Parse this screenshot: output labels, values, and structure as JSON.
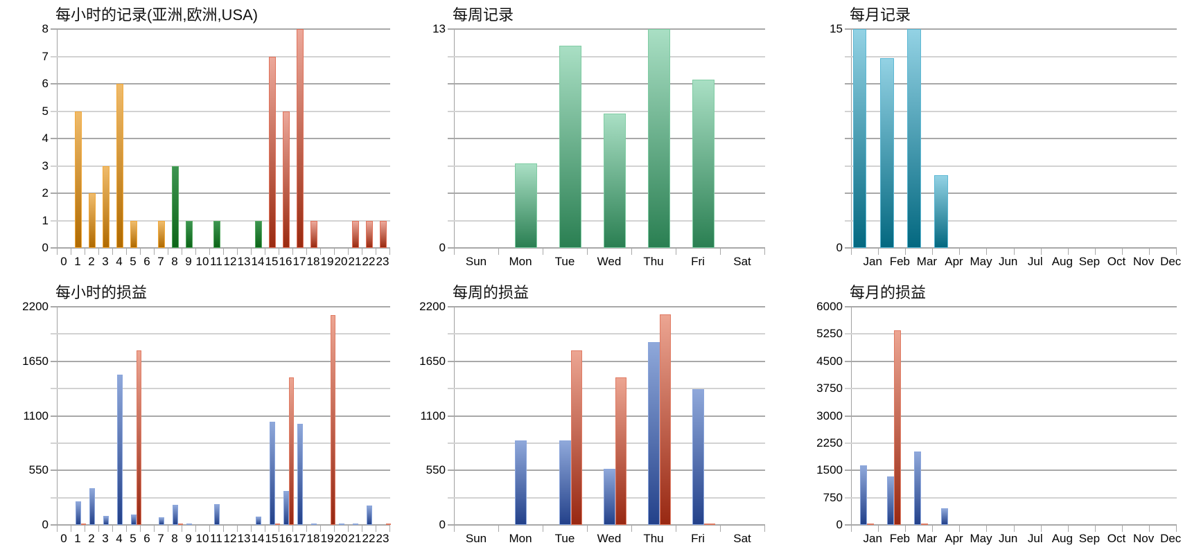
{
  "chart_data": [
    {
      "id": "hourly_records",
      "type": "bar",
      "title": "每小时的记录(亚洲,欧洲,USA)",
      "xlabel": "",
      "ylabel": "",
      "ylim": [
        0,
        8
      ],
      "yticks": [
        "0",
        "1",
        "2",
        "3",
        "4",
        "5",
        "6",
        "7",
        "8"
      ],
      "grid": true,
      "categories": [
        "0",
        "1",
        "2",
        "3",
        "4",
        "5",
        "6",
        "7",
        "8",
        "9",
        "10",
        "11",
        "12",
        "13",
        "14",
        "15",
        "16",
        "17",
        "18",
        "19",
        "20",
        "21",
        "22",
        "23"
      ],
      "series": [
        {
          "name": "亚洲",
          "color": "#d08a1c",
          "values": [
            0,
            5,
            2,
            3,
            6,
            1,
            0,
            1,
            0,
            0,
            0,
            0,
            0,
            0,
            0,
            0,
            0,
            0,
            0,
            0,
            0,
            0,
            0,
            0
          ]
        },
        {
          "name": "欧洲",
          "color": "#1e7a2a",
          "values": [
            0,
            0,
            0,
            0,
            0,
            0,
            0,
            0,
            3,
            1,
            0,
            1,
            0,
            0,
            1,
            0,
            0,
            0,
            0,
            0,
            0,
            0,
            0,
            0
          ]
        },
        {
          "name": "USA",
          "color": "#c2513a",
          "values": [
            0,
            0,
            0,
            0,
            0,
            0,
            0,
            0,
            0,
            0,
            0,
            0,
            0,
            0,
            0,
            7,
            5,
            8,
            1,
            0,
            0,
            1,
            1,
            1
          ]
        }
      ]
    },
    {
      "id": "weekly_records",
      "type": "bar",
      "title": "每周记录",
      "xlabel": "",
      "ylabel": "",
      "ylim": [
        0,
        13
      ],
      "yticks": [
        "0",
        "13"
      ],
      "grid": true,
      "categories": [
        "Sun",
        "Mon",
        "Tue",
        "Wed",
        "Thu",
        "Fri",
        "Sat"
      ],
      "values": [
        0,
        5,
        12,
        8,
        13,
        10,
        0
      ]
    },
    {
      "id": "monthly_records",
      "type": "bar",
      "title": "每月记录",
      "xlabel": "",
      "ylabel": "",
      "ylim": [
        0,
        15
      ],
      "yticks": [
        "0",
        "15"
      ],
      "grid": true,
      "categories": [
        "Jan",
        "Feb",
        "Mar",
        "Apr",
        "May",
        "Jun",
        "Jul",
        "Aug",
        "Sep",
        "Oct",
        "Nov",
        "Dec"
      ],
      "values": [
        15,
        13,
        15,
        5,
        0,
        0,
        0,
        0,
        0,
        0,
        0,
        0
      ]
    },
    {
      "id": "hourly_profit",
      "type": "bar",
      "title": "每小时的损益",
      "xlabel": "",
      "ylabel": "",
      "ylim": [
        0,
        2200
      ],
      "yticks": [
        "0",
        "550",
        "1100",
        "1650",
        "2200"
      ],
      "grid": true,
      "categories": [
        "0",
        "1",
        "2",
        "3",
        "4",
        "5",
        "6",
        "7",
        "8",
        "9",
        "10",
        "11",
        "12",
        "13",
        "14",
        "15",
        "16",
        "17",
        "18",
        "19",
        "20",
        "21",
        "22",
        "23"
      ],
      "series": [
        {
          "name": "blue",
          "color": "#3a5aa0",
          "values": [
            0,
            239,
            369,
            91,
            1515,
            105,
            0,
            74,
            202,
            2,
            0,
            207,
            0,
            0,
            86,
            1038,
            344,
            1017,
            4,
            0,
            4,
            2,
            193,
            0
          ]
        },
        {
          "name": "red",
          "color": "#c2513a",
          "values": [
            0,
            16,
            0,
            0,
            0,
            1758,
            0,
            0,
            2,
            0,
            0,
            0,
            0,
            0,
            0,
            2,
            1489,
            0,
            0,
            2114,
            0,
            0,
            0,
            3
          ]
        }
      ]
    },
    {
      "id": "weekly_profit",
      "type": "bar",
      "title": "每周的损益",
      "xlabel": "",
      "ylabel": "",
      "ylim": [
        0,
        2200
      ],
      "yticks": [
        "0",
        "550",
        "1100",
        "1650",
        "2200"
      ],
      "grid": true,
      "categories": [
        "Sun",
        "Mon",
        "Tue",
        "Wed",
        "Thu",
        "Fri",
        "Sat"
      ],
      "series": [
        {
          "name": "blue",
          "color": "#3a5aa0",
          "values": [
            0,
            855,
            855,
            565,
            1845,
            1368,
            0
          ]
        },
        {
          "name": "red",
          "color": "#c2513a",
          "values": [
            0,
            0,
            1759,
            1489,
            2126,
            3,
            0
          ]
        }
      ]
    },
    {
      "id": "monthly_profit",
      "type": "bar",
      "title": "每月的损益",
      "xlabel": "",
      "ylabel": "",
      "ylim": [
        0,
        6000
      ],
      "yticks": [
        "0",
        "750",
        "1500",
        "2250",
        "3000",
        "3750",
        "4500",
        "5250",
        "6000"
      ],
      "grid": true,
      "categories": [
        "Jan",
        "Feb",
        "Mar",
        "Apr",
        "May",
        "Jun",
        "Jul",
        "Aug",
        "Sep",
        "Oct",
        "Nov",
        "Dec"
      ],
      "series": [
        {
          "name": "blue",
          "color": "#3a5aa0",
          "values": [
            1647,
            1343,
            2021,
            462,
            0,
            0,
            0,
            0,
            0,
            0,
            0,
            0
          ]
        },
        {
          "name": "red",
          "color": "#c2513a",
          "values": [
            40,
            5354,
            10,
            0,
            0,
            0,
            0,
            0,
            0,
            0,
            0,
            0
          ]
        }
      ]
    }
  ]
}
